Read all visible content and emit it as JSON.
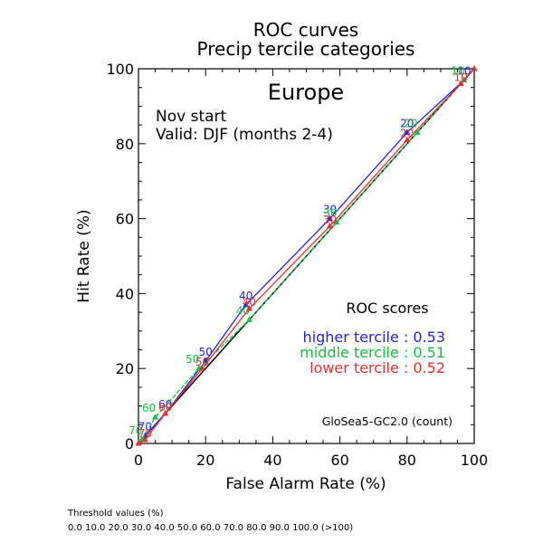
{
  "chart_data": {
    "type": "line",
    "title": "ROC curves",
    "subtitle": "Precip tercile categories",
    "region": "Europe",
    "start_label": "Nov start",
    "valid_label": "Valid: DJF (months 2-4)",
    "xlabel": "False Alarm Rate (%)",
    "ylabel": "Hit Rate (%)",
    "xlim": [
      0,
      100
    ],
    "ylim": [
      0,
      100
    ],
    "x_ticks": [
      "0",
      "20",
      "40",
      "60",
      "80",
      "100"
    ],
    "y_ticks": [
      "0",
      "20",
      "40",
      "60",
      "80",
      "100"
    ],
    "scores_heading": "ROC scores",
    "model_label": "GloSea5-GC2.0 (count)",
    "series": [
      {
        "name": "higher tercile",
        "score_label": "higher tercile : 0.53",
        "color": "#2020e0",
        "points": [
          {
            "x": 0,
            "y": 0
          },
          {
            "x": 97,
            "y": 97,
            "label": "10"
          },
          {
            "x": 80,
            "y": 83,
            "label": "20"
          },
          {
            "x": 57,
            "y": 60,
            "label": "30"
          },
          {
            "x": 32,
            "y": 37,
            "label": "40"
          },
          {
            "x": 20,
            "y": 22,
            "label": "50"
          },
          {
            "x": 8,
            "y": 8,
            "label": "60"
          },
          {
            "x": 2,
            "y": 2,
            "label": "70"
          },
          {
            "x": 100,
            "y": 100
          }
        ]
      },
      {
        "name": "middle tercile",
        "score_label": "middle tercile : 0.51",
        "color": "#10c040",
        "points": [
          {
            "x": 0,
            "y": 0
          },
          {
            "x": 97,
            "y": 97,
            "label": "10"
          },
          {
            "x": 83,
            "y": 83,
            "label": "20"
          },
          {
            "x": 59,
            "y": 59,
            "label": "30"
          },
          {
            "x": 33,
            "y": 33,
            "label": "40"
          },
          {
            "x": 18,
            "y": 20,
            "label": "50"
          },
          {
            "x": 5,
            "y": 7,
            "label": "60"
          },
          {
            "x": 1,
            "y": 1,
            "label": "70"
          },
          {
            "x": 100,
            "y": 100
          }
        ]
      },
      {
        "name": "lower tercile",
        "score_label": "lower tercile : 0.52",
        "color": "#e83030",
        "points": [
          {
            "x": 0,
            "y": 0
          },
          {
            "x": 96,
            "y": 96,
            "label": "10"
          },
          {
            "x": 80,
            "y": 81,
            "label": "20"
          },
          {
            "x": 57,
            "y": 58,
            "label": "30"
          },
          {
            "x": 33,
            "y": 36,
            "label": "40"
          },
          {
            "x": 19,
            "y": 20,
            "label": "50"
          },
          {
            "x": 8,
            "y": 8,
            "label": "60"
          },
          {
            "x": 2,
            "y": 1,
            "label": "70"
          },
          {
            "x": 100,
            "y": 100
          }
        ]
      }
    ],
    "reference_line": {
      "from": [
        0,
        0
      ],
      "to": [
        100,
        100
      ],
      "color": "#000000"
    },
    "grid": false
  },
  "footer": {
    "threshold_heading": "Threshold values (%)",
    "threshold_values": "0.0 10.0 20.0 30.0 40.0 50.0 60.0 70.0 80.0 90.0 100.0 (>100)"
  }
}
